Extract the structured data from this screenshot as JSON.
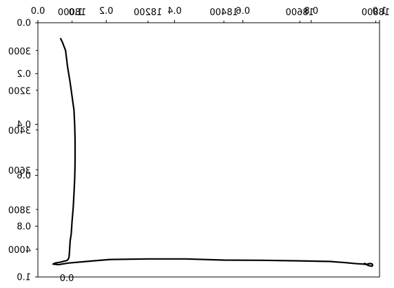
{
  "chart_data": {
    "type": "line",
    "title": "",
    "xlabel": "",
    "ylabel": "",
    "frame": {
      "xlim": [
        0,
        1
      ],
      "ylim": [
        0,
        1
      ],
      "x_ticks": [
        "0.0",
        "0.2",
        "0.4",
        "0.6",
        "0.8",
        "1.0"
      ],
      "y_ticks": [
        "0.0",
        "0.2",
        "0.4",
        "0.6",
        "0.8",
        "1.0"
      ]
    },
    "twin_top": {
      "xlim": [
        17910,
        18810
      ],
      "ticks": [
        {
          "label": "18000",
          "value": 18000
        },
        {
          "label": "18200",
          "value": 18200
        },
        {
          "label": "18400",
          "value": 18400
        },
        {
          "label": "18600",
          "value": 18600
        },
        {
          "label": "18800",
          "value": 18800
        }
      ]
    },
    "twin_left": {
      "ylim": [
        4140,
        2860
      ],
      "ticks": [
        {
          "label": "3000",
          "value": 3000
        },
        {
          "label": "3200",
          "value": 3200
        },
        {
          "label": "3400",
          "value": 3400
        },
        {
          "label": "3600",
          "value": 3600
        },
        {
          "label": "3800",
          "value": 3800
        },
        {
          "label": "4000",
          "value": 4000
        }
      ]
    },
    "stray_labels": [
      {
        "label": "1.0",
        "near": "top-left"
      },
      {
        "label": "0.0",
        "near": "bottom-left"
      }
    ],
    "series": [
      {
        "color": "#000000",
        "x": [
          17970,
          17975,
          17983,
          17988,
          17995,
          18000,
          18005,
          18007,
          18008,
          18008,
          18007,
          18005,
          18003,
          18000,
          17998,
          17995,
          17994,
          17993,
          17992,
          17990,
          17988,
          17985,
          17980,
          17970,
          17955,
          17950,
          17965,
          17990,
          18050,
          18100,
          18200,
          18300,
          18400,
          18500,
          18600,
          18680,
          18720,
          18750,
          18768,
          18775,
          18780,
          18785,
          18790,
          18792,
          18790,
          18780,
          18775,
          18770
        ],
        "y": [
          2940,
          2960,
          3000,
          3080,
          3160,
          3230,
          3300,
          3380,
          3460,
          3560,
          3640,
          3720,
          3790,
          3860,
          3920,
          3960,
          3990,
          4020,
          4040,
          4050,
          4055,
          4058,
          4060,
          4065,
          4070,
          4075,
          4078,
          4070,
          4060,
          4052,
          4049,
          4049,
          4055,
          4056,
          4059,
          4062,
          4068,
          4073,
          4075,
          4077,
          4074,
          4072,
          4074,
          4080,
          4086,
          4082,
          4075,
          4072
        ]
      }
    ]
  }
}
